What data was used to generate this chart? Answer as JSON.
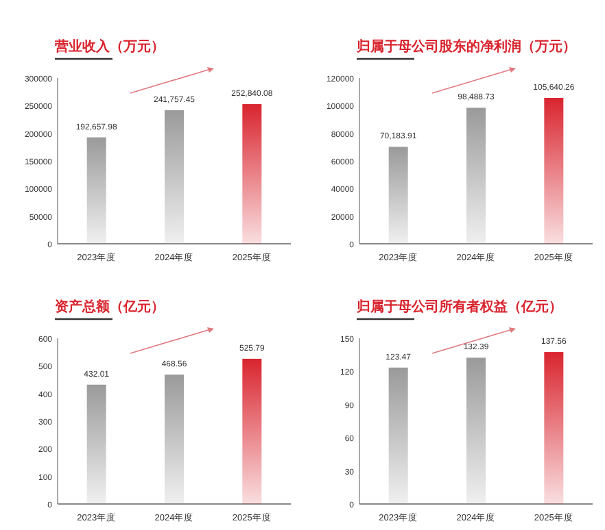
{
  "chart_data": [
    {
      "type": "bar",
      "title": "营业收入（万元）",
      "categories": [
        "2023年度",
        "2024年度",
        "2025年度"
      ],
      "values": [
        192657.98,
        241757.45,
        252840.08
      ],
      "value_labels": [
        "192,657.98",
        "241,757.45",
        "252,840.08"
      ],
      "colors": [
        "#9a9a9a",
        "#9a9a9a",
        "#d9252f"
      ],
      "ylim": [
        0,
        300000
      ],
      "yticks": [
        0,
        50000,
        100000,
        150000,
        200000,
        250000,
        300000
      ]
    },
    {
      "type": "bar",
      "title": "归属于母公司股东的净利润（万元）",
      "categories": [
        "2023年度",
        "2024年度",
        "2025年度"
      ],
      "values": [
        70183.91,
        98488.73,
        105640.26
      ],
      "value_labels": [
        "70,183.91",
        "98,488.73",
        "105,640.26"
      ],
      "colors": [
        "#9a9a9a",
        "#9a9a9a",
        "#d9252f"
      ],
      "ylim": [
        0,
        120000
      ],
      "yticks": [
        0,
        20000,
        40000,
        60000,
        80000,
        100000,
        120000
      ]
    },
    {
      "type": "bar",
      "title": "资产总额（亿元）",
      "categories": [
        "2023年度",
        "2024年度",
        "2025年度"
      ],
      "values": [
        432.01,
        468.56,
        525.79
      ],
      "data_labels": true,
      "colors": [
        "#9a9a9a",
        "#9a9a9a",
        "#d9252f"
      ],
      "ylim": [
        0,
        600
      ],
      "yticks": [
        0,
        100,
        200,
        300,
        400,
        500,
        600
      ]
    },
    {
      "type": "bar",
      "title": "归属于母公司所有者权益（亿元）",
      "categories": [
        "2023年度",
        "2024年度",
        "2025年度"
      ],
      "values": [
        123.47,
        132.39,
        137.56
      ],
      "data_labels": true,
      "colors": [
        "#9a9a9a",
        "#9a9a9a",
        "#d9252f"
      ],
      "ylim": [
        0,
        150
      ],
      "yticks": [
        0,
        30,
        60,
        90,
        120,
        150
      ]
    }
  ]
}
